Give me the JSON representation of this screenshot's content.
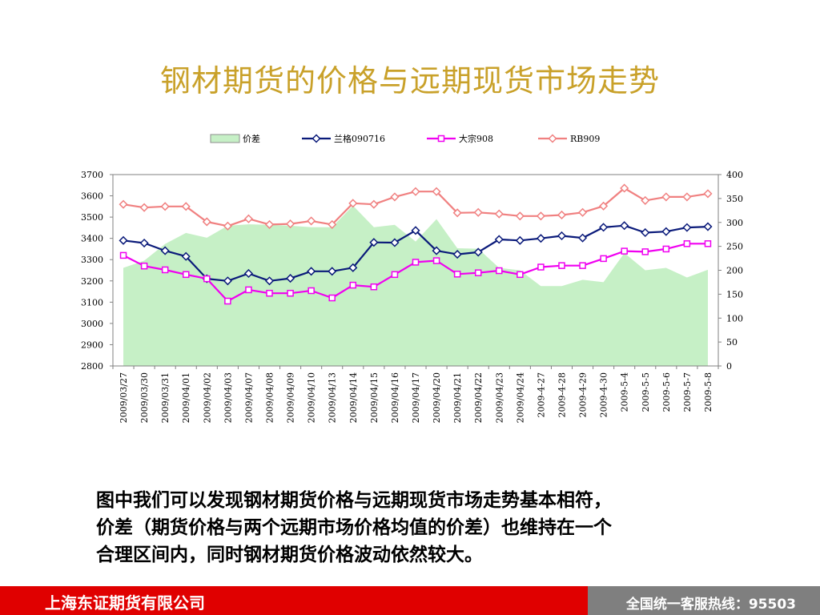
{
  "title": "钢材期货的价格与远期现货市场走势",
  "caption_lines": [
    "图中我们可以发现钢材期货价格与远期现货市场走势基本相符，",
    "价差（期货价格与两个远期市场价格均值的价差）也维持在一个",
    "合理区间内，同时钢材期货价格波动依然较大。"
  ],
  "footer": {
    "company": "上海东证期货有限公司",
    "hotline": "全国统一客服热线：95503"
  },
  "chart_data": {
    "type": "line",
    "categories": [
      "2009/03/27",
      "2009/03/30",
      "2009/03/31",
      "2009/04/01",
      "2009/04/02",
      "2009/04/03",
      "2009/04/07",
      "2009/04/08",
      "2009/04/09",
      "2009/04/10",
      "2009/04/13",
      "2009/04/14",
      "2009/04/15",
      "2009/04/16",
      "2009/04/17",
      "2009/04/20",
      "2009/04/21",
      "2009/04/22",
      "2009/04/23",
      "2009/04/24",
      "2009-4-27",
      "2009-4-28",
      "2009-4-29",
      "2009-4-30",
      "2009-5-4",
      "2009-5-5",
      "2009-5-6",
      "2009-5-7",
      "2009-5-8"
    ],
    "y_left": {
      "min": 2800,
      "max": 3700,
      "step": 100,
      "ticks": [
        "2800",
        "2900",
        "3000",
        "3100",
        "3200",
        "3300",
        "3400",
        "3500",
        "3600",
        "3700"
      ]
    },
    "y_right": {
      "min": 0,
      "max": 400,
      "step": 50,
      "ticks": [
        "0",
        "50",
        "100",
        "150",
        "200",
        "250",
        "300",
        "350",
        "400"
      ]
    },
    "legend_position": "top",
    "series": [
      {
        "name": "价差",
        "kind": "area",
        "axis": "right",
        "color": "#c6f0c6",
        "stroke": "#8c8c8c",
        "values": [
          205,
          220,
          255,
          278,
          268,
          293,
          296,
          295,
          293,
          290,
          290,
          335,
          290,
          295,
          260,
          307,
          246,
          245,
          205,
          200,
          167,
          167,
          180,
          175,
          236,
          200,
          205,
          185,
          201
        ]
      },
      {
        "name": "兰格090716",
        "kind": "line",
        "axis": "left",
        "color": "#0a1a7a",
        "marker": "diamond",
        "values": [
          3390,
          3378,
          3342,
          3315,
          3210,
          3200,
          3235,
          3200,
          3212,
          3245,
          3245,
          3262,
          3381,
          3380,
          3437,
          3342,
          3325,
          3335,
          3395,
          3390,
          3400,
          3412,
          3402,
          3452,
          3460,
          3427,
          3432,
          3451,
          3455
        ]
      },
      {
        "name": "大宗908",
        "kind": "line",
        "axis": "left",
        "color": "#f000f0",
        "marker": "square",
        "values": [
          3320,
          3270,
          3252,
          3230,
          3210,
          3105,
          3158,
          3142,
          3142,
          3154,
          3120,
          3180,
          3172,
          3230,
          3288,
          3295,
          3232,
          3238,
          3248,
          3230,
          3265,
          3272,
          3272,
          3305,
          3340,
          3337,
          3350,
          3375,
          3375
        ]
      },
      {
        "name": "RB909",
        "kind": "line",
        "axis": "left",
        "color": "#f08080",
        "marker": "diamond",
        "values": [
          3560,
          3545,
          3550,
          3550,
          3478,
          3458,
          3492,
          3465,
          3468,
          3482,
          3465,
          3565,
          3560,
          3595,
          3620,
          3620,
          3520,
          3522,
          3515,
          3505,
          3505,
          3510,
          3522,
          3552,
          3636,
          3578,
          3595,
          3595,
          3610
        ]
      }
    ]
  }
}
